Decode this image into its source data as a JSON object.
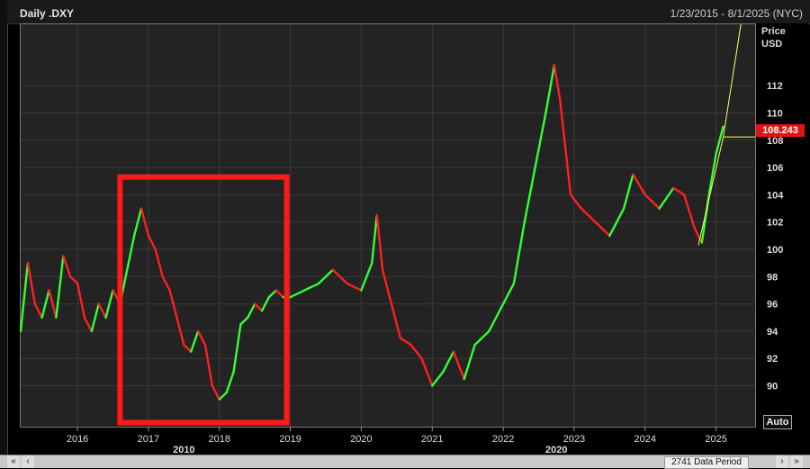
{
  "window": {
    "title": "Daily .DXY",
    "date_range": "1/23/2015 - 8/1/2025 (NYC)"
  },
  "axis": {
    "unit_line1": "Price",
    "unit_line2": "USD",
    "auto_label": "Auto"
  },
  "last_price": "108.243",
  "scrollbar": {
    "period_label": "2741 Data Period",
    "left_btn": "«",
    "left_btn2": "‹",
    "right_btn": "›",
    "right_btn2": "»"
  },
  "colors": {
    "up": "#33ff33",
    "down": "#ff2020",
    "projection": "#ffff66",
    "highlight_box": "#ff1a1a",
    "badge": "#e01414"
  },
  "chart_data": {
    "type": "line",
    "title": "Daily .DXY",
    "ylabel": "Price USD",
    "ylim": [
      87,
      116.5
    ],
    "yticks": [
      90,
      92,
      94,
      96,
      98,
      100,
      102,
      104,
      106,
      108,
      110,
      112
    ],
    "xlim": [
      2015.2,
      2025.55
    ],
    "xticks": [
      "2016",
      "2017",
      "2018",
      "2019",
      "2020",
      "2021",
      "2022",
      "2023",
      "2024",
      "2025"
    ],
    "decade_labels": [
      {
        "label": "2010",
        "x": 2017.5
      },
      {
        "label": "2020",
        "x": 2022.75
      }
    ],
    "series": [
      {
        "x": [
          2015.2,
          2015.3,
          2015.4,
          2015.5,
          2015.6,
          2015.7,
          2015.8,
          2015.9,
          2016.0,
          2016.1,
          2016.2,
          2016.3,
          2016.4,
          2016.5,
          2016.6,
          2016.7,
          2016.8,
          2016.9,
          2017.0,
          2017.1,
          2017.2,
          2017.3,
          2017.4,
          2017.5,
          2017.6,
          2017.7,
          2017.8,
          2017.9,
          2018.0,
          2018.1,
          2018.2,
          2018.3,
          2018.4,
          2018.5,
          2018.6,
          2018.7,
          2018.8,
          2018.9,
          2019.0,
          2019.2,
          2019.4,
          2019.6,
          2019.8,
          2020.0,
          2020.15,
          2020.22,
          2020.3,
          2020.4,
          2020.55,
          2020.7,
          2020.85,
          2021.0,
          2021.15,
          2021.3,
          2021.45,
          2021.6,
          2021.8,
          2022.0,
          2022.15,
          2022.3,
          2022.45,
          2022.6,
          2022.72,
          2022.8,
          2022.95,
          2023.1,
          2023.3,
          2023.5,
          2023.7,
          2023.83,
          2024.0,
          2024.2,
          2024.4,
          2024.55,
          2024.7,
          2024.8,
          2024.9,
          2025.0,
          2025.1
        ],
        "values": [
          94,
          99,
          96,
          95,
          97,
          95,
          99.5,
          98,
          97.5,
          95,
          94,
          96,
          95,
          97,
          96,
          98.5,
          101,
          103,
          101,
          100,
          98,
          97,
          95,
          93,
          92.5,
          94,
          93,
          90,
          89,
          89.5,
          91,
          94.5,
          95,
          96,
          95.5,
          96.5,
          97,
          96.5,
          96.5,
          97,
          97.5,
          98.5,
          97.5,
          97,
          99,
          102.5,
          98.5,
          96.5,
          93.5,
          93,
          92,
          90,
          91,
          92.5,
          90.5,
          93,
          94,
          96,
          97.5,
          102,
          106,
          110,
          113.5,
          111,
          104,
          103,
          102,
          101,
          103,
          105.5,
          104,
          103,
          104.5,
          104,
          101.5,
          100.5,
          104,
          107,
          109
        ]
      }
    ],
    "projection": {
      "x": [
        2025.1,
        2025.35
      ],
      "values": [
        108.2,
        116.5
      ],
      "flat_y": 108.243
    },
    "highlight_box": {
      "x": [
        2016.6,
        2018.95
      ],
      "y": [
        87.3,
        105.3
      ]
    }
  }
}
